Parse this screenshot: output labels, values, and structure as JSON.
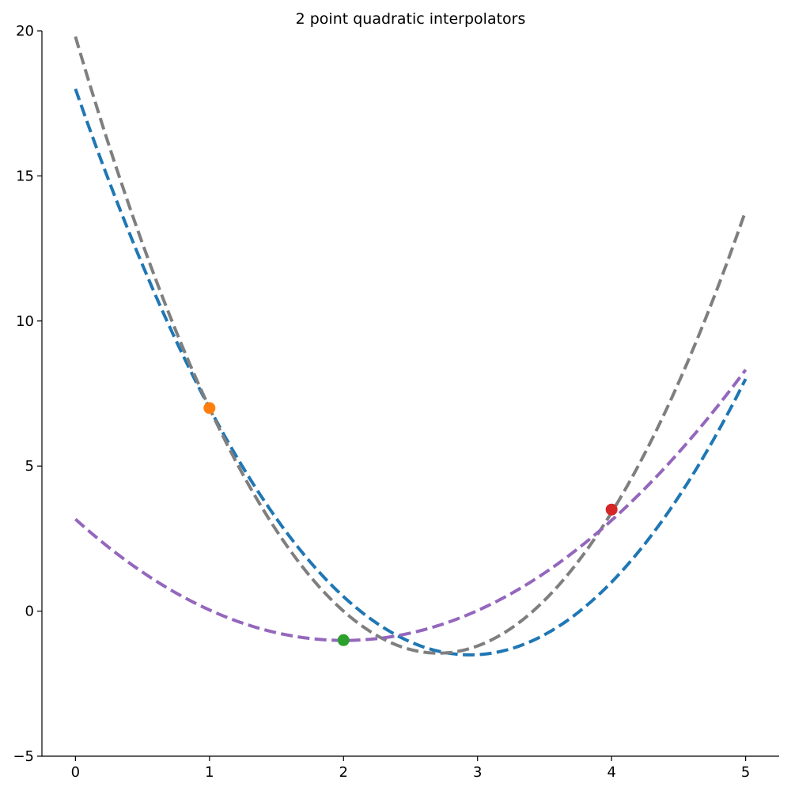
{
  "chart_data": {
    "type": "line",
    "title": "2 point quadratic interpolators",
    "xlabel": "",
    "ylabel": "",
    "xlim": [
      -0.25,
      5.25
    ],
    "ylim": [
      -5,
      20
    ],
    "xticks": [
      0,
      1,
      2,
      3,
      4,
      5
    ],
    "yticks": [
      -5,
      0,
      5,
      10,
      15,
      20
    ],
    "xtick_labels": [
      "0",
      "1",
      "2",
      "3",
      "4",
      "5"
    ],
    "ytick_labels": [
      "−5",
      "0",
      "5",
      "10",
      "15",
      "20"
    ],
    "grid": false,
    "legend": "none",
    "spines": [
      "left",
      "bottom"
    ],
    "series": [
      {
        "color": "#1f77b4",
        "style": "dashed",
        "coefficients": [
          2.25,
          -13.25,
          18
        ],
        "x": [
          0,
          0.5,
          1,
          1.5,
          2,
          2.5,
          3,
          3.5,
          4,
          4.5,
          5
        ],
        "y": [
          18,
          11.94,
          7,
          3.19,
          0.5,
          -1.06,
          -1.5,
          -0.81,
          1,
          3.94,
          8
        ]
      },
      {
        "color": "#7f7f7f",
        "style": "dashed",
        "coefficients": [
          2.9,
          -15.7,
          19.8
        ],
        "x": [
          0,
          0.5,
          1,
          1.5,
          2,
          2.5,
          3,
          3.5,
          4,
          4.5,
          5
        ],
        "y": [
          19.8,
          12.68,
          7,
          2.78,
          0,
          -1.33,
          -1.2,
          0.38,
          3.4,
          7.88,
          14
        ]
      },
      {
        "color": "#9467bd",
        "style": "dashed",
        "coefficients": [
          1.04,
          -4.17,
          3.17
        ],
        "x": [
          0,
          0.5,
          1,
          1.5,
          2,
          2.5,
          3,
          3.5,
          4,
          4.5,
          5
        ],
        "y": [
          3.17,
          1.35,
          0.04,
          -0.75,
          -1,
          -0.71,
          0.12,
          1.47,
          3.5,
          5.96,
          9
        ]
      }
    ],
    "points": [
      {
        "x": 1,
        "y": 7,
        "color": "#ff7f0e"
      },
      {
        "x": 2,
        "y": -1,
        "color": "#2ca02c"
      },
      {
        "x": 4,
        "y": 3.5,
        "color": "#d62728"
      }
    ]
  }
}
